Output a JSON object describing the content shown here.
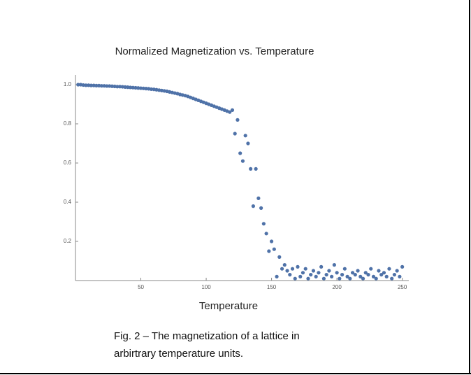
{
  "chart_data": {
    "type": "scatter",
    "title": "Normalized Magnetization vs. Temperature",
    "x_label": "Temperature",
    "caption": "Fig. 2 – The magnetization of a lattice in arbirtrary temperature units.",
    "color": "#4f72a8",
    "xlim": [
      0,
      255
    ],
    "ylim": [
      0,
      1.05
    ],
    "xticks": [
      50,
      100,
      150,
      200,
      250
    ],
    "yticks": [
      0.2,
      0.4,
      0.6,
      0.8,
      {
        "value": 1,
        "label": "1.0"
      }
    ],
    "x": [
      2,
      4,
      6,
      8,
      10,
      12,
      14,
      16,
      18,
      20,
      22,
      24,
      26,
      28,
      30,
      32,
      34,
      36,
      38,
      40,
      42,
      44,
      46,
      48,
      50,
      52,
      54,
      56,
      58,
      60,
      62,
      64,
      66,
      68,
      70,
      72,
      74,
      76,
      78,
      80,
      82,
      84,
      86,
      88,
      90,
      92,
      94,
      96,
      98,
      100,
      102,
      104,
      106,
      108,
      110,
      112,
      114,
      116,
      118,
      120,
      122,
      124,
      126,
      128,
      130,
      132,
      134,
      136,
      138,
      140,
      142,
      144,
      146,
      148,
      150,
      152,
      154,
      156,
      158,
      160,
      162,
      164,
      166,
      168,
      170,
      172,
      174,
      176,
      178,
      180,
      182,
      184,
      186,
      188,
      190,
      192,
      194,
      196,
      198,
      200,
      202,
      204,
      206,
      208,
      210,
      212,
      214,
      216,
      218,
      220,
      222,
      224,
      226,
      228,
      230,
      232,
      234,
      236,
      238,
      240,
      242,
      244,
      246,
      248,
      250
    ],
    "values": [
      1.0,
      1.0,
      0.998,
      0.997,
      0.997,
      0.996,
      0.996,
      0.995,
      0.995,
      0.994,
      0.994,
      0.993,
      0.993,
      0.992,
      0.991,
      0.99,
      0.99,
      0.989,
      0.988,
      0.987,
      0.986,
      0.985,
      0.984,
      0.983,
      0.982,
      0.981,
      0.98,
      0.979,
      0.977,
      0.976,
      0.974,
      0.972,
      0.97,
      0.968,
      0.966,
      0.963,
      0.96,
      0.957,
      0.954,
      0.95,
      0.947,
      0.944,
      0.94,
      0.935,
      0.93,
      0.925,
      0.92,
      0.915,
      0.91,
      0.905,
      0.9,
      0.895,
      0.89,
      0.885,
      0.88,
      0.875,
      0.87,
      0.865,
      0.86,
      0.87,
      0.75,
      0.82,
      0.65,
      0.61,
      0.74,
      0.7,
      0.57,
      0.38,
      0.57,
      0.42,
      0.37,
      0.29,
      0.24,
      0.15,
      0.2,
      0.16,
      0.02,
      0.12,
      0.06,
      0.08,
      0.05,
      0.03,
      0.06,
      0.01,
      0.07,
      0.02,
      0.04,
      0.06,
      0.01,
      0.03,
      0.05,
      0.02,
      0.04,
      0.07,
      0.01,
      0.03,
      0.05,
      0.02,
      0.08,
      0.04,
      0.01,
      0.03,
      0.06,
      0.02,
      0.01,
      0.04,
      0.03,
      0.05,
      0.02,
      0.01,
      0.04,
      0.03,
      0.06,
      0.02,
      0.01,
      0.05,
      0.03,
      0.04,
      0.02,
      0.06,
      0.01,
      0.03,
      0.05,
      0.02,
      0.07
    ]
  }
}
